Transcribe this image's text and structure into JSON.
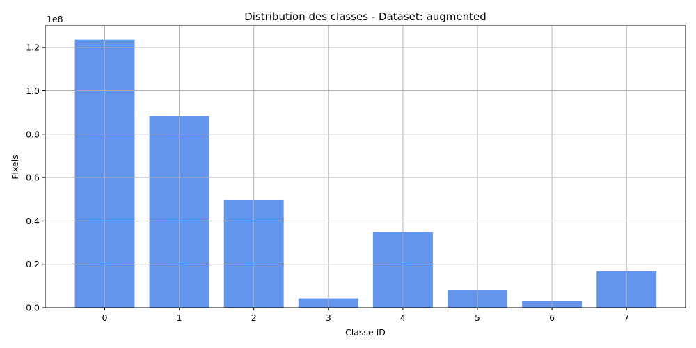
{
  "chart_data": {
    "type": "bar",
    "title": "Distribution des classes - Dataset: augmented",
    "xlabel": "Classe ID",
    "ylabel": "Pixels",
    "y_offset_label": "1e8",
    "categories": [
      "0",
      "1",
      "2",
      "3",
      "4",
      "5",
      "6",
      "7"
    ],
    "values": [
      123700000,
      88400000,
      49500000,
      4300000,
      34800000,
      8300000,
      3100000,
      16800000
    ],
    "ylim": [
      0,
      130000000
    ],
    "yticks": [
      0,
      20000000,
      40000000,
      60000000,
      80000000,
      100000000,
      120000000
    ],
    "ytick_labels": [
      "0.0",
      "0.2",
      "0.4",
      "0.6",
      "0.8",
      "1.0",
      "1.2"
    ],
    "grid": true,
    "bar_color": "#6495ED",
    "grid_color": "#b0b0b0"
  }
}
